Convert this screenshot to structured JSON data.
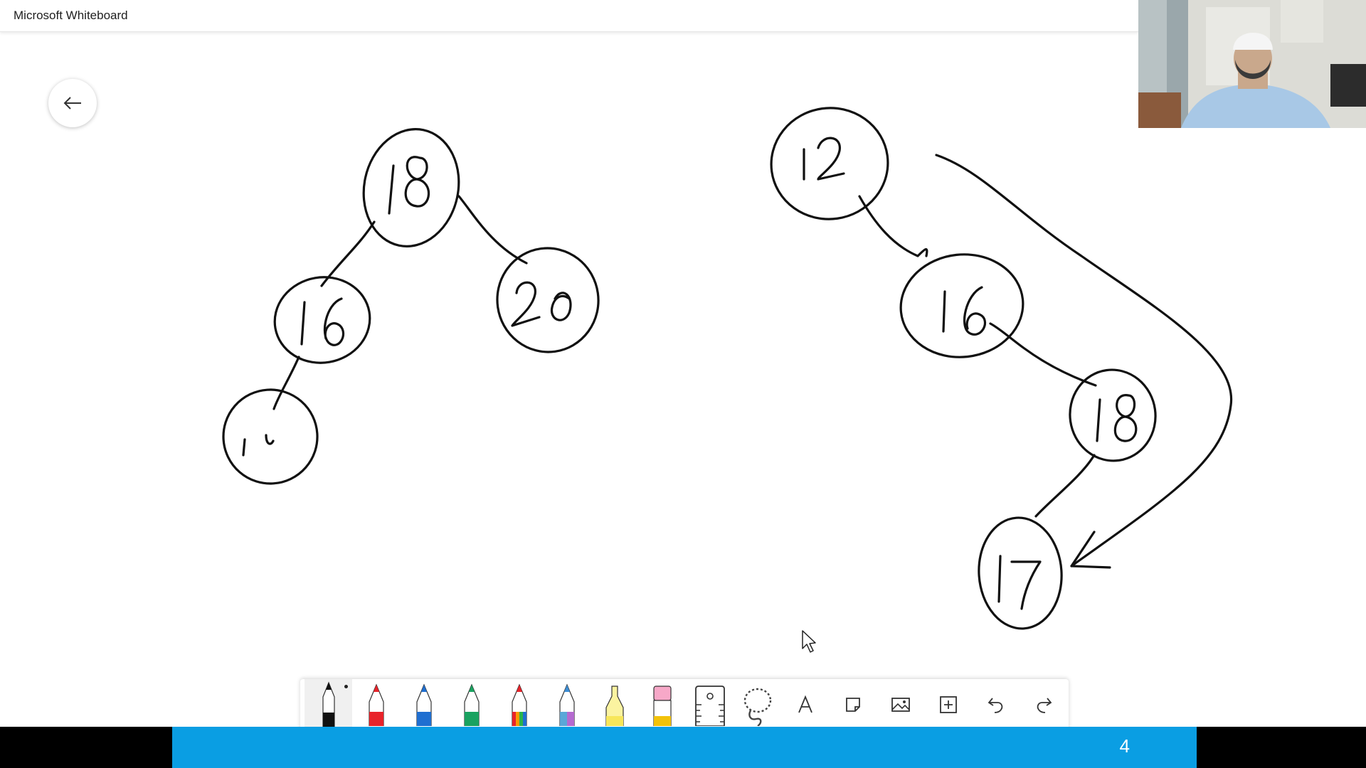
{
  "app": {
    "title": "Microsoft Whiteboard"
  },
  "canvas": {
    "tree_left": {
      "nodes": [
        "18",
        "16",
        "20",
        "1"
      ]
    },
    "tree_right": {
      "nodes": [
        "12",
        "16",
        "18",
        "17"
      ]
    }
  },
  "toolbar": {
    "tools": [
      {
        "name": "black-pen",
        "color": "#111111"
      },
      {
        "name": "red-pen",
        "color": "#e8232a"
      },
      {
        "name": "blue-pen",
        "color": "#1f6fd1"
      },
      {
        "name": "green-pen",
        "color": "#1aa260"
      },
      {
        "name": "rainbow-pen",
        "color": "#ff7a00"
      },
      {
        "name": "galaxy-pen",
        "color": "#5aa7d8"
      },
      {
        "name": "highlighter",
        "color": "#f7e65a"
      },
      {
        "name": "eraser",
        "color": "#f7a8c8"
      },
      {
        "name": "ruler",
        "color": "#555555"
      },
      {
        "name": "lasso",
        "color": "#555555"
      },
      {
        "name": "text",
        "icon": "text-icon"
      },
      {
        "name": "note",
        "icon": "note-icon"
      },
      {
        "name": "image",
        "icon": "image-icon"
      },
      {
        "name": "insert",
        "icon": "add-icon"
      },
      {
        "name": "undo",
        "icon": "undo-icon"
      },
      {
        "name": "redo",
        "icon": "redo-icon"
      }
    ]
  },
  "footer": {
    "page_number": "4",
    "accent": "#0a9ee3"
  }
}
